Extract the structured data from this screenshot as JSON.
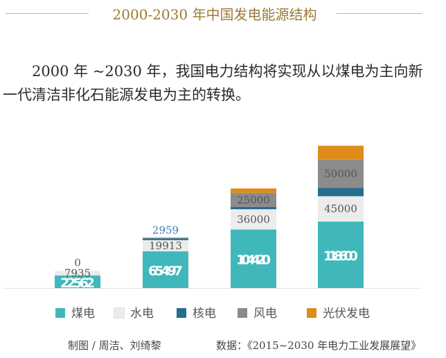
{
  "page": {
    "title": "2000-2030 年中国发电能源结构",
    "intro": "2000 年 ~2030 年，我国电力结构将实现从以煤电为主向新一代清洁非化石能源发电为主的转换。",
    "credit": "制图 / 周洁、刘绮黎",
    "source": "数据：《2015~2030 年电力工业发展展望》"
  },
  "colors": {
    "coal": "#40b8bb",
    "hydro": "#ececec",
    "nuclear": "#226e8c",
    "wind": "#8b8b8b",
    "solar": "#dd8c1a",
    "title": "#9b7a35",
    "above_label_highlight": "#3a7fb4"
  },
  "chart_data": {
    "type": "bar",
    "stacked": true,
    "grid": false,
    "categories": [
      "",
      "",
      "",
      ""
    ],
    "series": [
      {
        "name": "煤电",
        "color_key": "coal",
        "values": [
          22562,
          65497,
          104420,
          118600
        ],
        "labels": [
          "22562",
          "65497",
          "104420",
          "118600"
        ]
      },
      {
        "name": "水电",
        "color_key": "hydro",
        "values": [
          7935,
          19913,
          36000,
          45000
        ],
        "labels": [
          "7935",
          "19913",
          "36000",
          "45000"
        ]
      },
      {
        "name": "核电",
        "color_key": "nuclear",
        "values": [
          0,
          2959,
          4000,
          15000
        ],
        "labels": [
          "0",
          "2959",
          "",
          ""
        ]
      },
      {
        "name": "风电",
        "color_key": "wind",
        "values": [
          0,
          1500,
          25000,
          50000
        ],
        "labels": [
          "",
          "",
          "25000",
          "50000"
        ]
      },
      {
        "name": "光伏发电",
        "color_key": "solar",
        "values": [
          0,
          0,
          8000,
          25000
        ],
        "labels": [
          "",
          "",
          "",
          ""
        ]
      }
    ],
    "legend": {
      "position": "bottom",
      "items": [
        "煤电",
        "水电",
        "核电",
        "风电",
        "光伏发电"
      ]
    }
  }
}
